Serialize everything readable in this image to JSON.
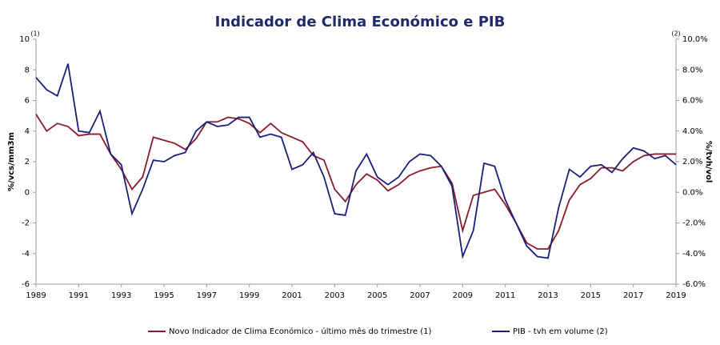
{
  "chart_data": {
    "type": "line",
    "title": "Indicador de Clima Económico e PIB",
    "y_label": "%/vcs/mm3m",
    "y2_label": "%/tvh/vol",
    "y_note": "(1)",
    "y2_note": "(2)",
    "x": [
      1989,
      1989.5,
      1990,
      1990.5,
      1991,
      1991.5,
      1992,
      1992.5,
      1993,
      1993.5,
      1994,
      1994.5,
      1995,
      1995.5,
      1996,
      1996.5,
      1997,
      1997.5,
      1998,
      1998.5,
      1999,
      1999.5,
      2000,
      2000.5,
      2001,
      2001.5,
      2002,
      2002.5,
      2003,
      2003.5,
      2004,
      2004.5,
      2005,
      2005.5,
      2006,
      2006.5,
      2007,
      2007.5,
      2008,
      2008.5,
      2009,
      2009.5,
      2010,
      2010.5,
      2011,
      2011.5,
      2012,
      2012.5,
      2013,
      2013.5,
      2014,
      2014.5,
      2015,
      2015.5,
      2016,
      2016.5,
      2017,
      2017.5,
      2018,
      2018.5,
      2019
    ],
    "series": [
      {
        "name": "Novo Indicador de Clima Económico - último mês do trimestre (1)",
        "color": "#8b1a2b",
        "values": [
          5.1,
          4.0,
          4.5,
          4.3,
          3.7,
          3.8,
          3.8,
          2.5,
          1.5,
          0.2,
          1.0,
          3.6,
          3.4,
          3.2,
          2.8,
          3.5,
          4.6,
          4.6,
          4.9,
          4.8,
          4.5,
          3.9,
          4.5,
          3.9,
          3.6,
          3.3,
          2.4,
          2.1,
          0.2,
          -0.6,
          0.5,
          1.2,
          0.8,
          0.1,
          0.5,
          1.1,
          1.4,
          1.6,
          1.7,
          0.6,
          -2.5,
          -0.2,
          0.0,
          0.2,
          -0.8,
          -2.0,
          -3.3,
          -3.7,
          -3.7,
          -2.5,
          -0.5,
          0.5,
          0.9,
          1.6,
          1.6,
          1.4,
          2.0,
          2.4,
          2.5,
          2.5,
          2.5
        ]
      },
      {
        "name": "PIB - tvh em volume (2)",
        "color": "#1a1f7a",
        "axis": "y2",
        "values": [
          7.5,
          6.7,
          6.3,
          8.4,
          4.0,
          3.9,
          5.3,
          2.5,
          1.8,
          -1.4,
          0.2,
          2.1,
          2.0,
          2.4,
          2.6,
          4.0,
          4.6,
          4.3,
          4.4,
          4.9,
          4.9,
          3.6,
          3.8,
          3.6,
          1.5,
          1.8,
          2.6,
          1.0,
          -1.4,
          -1.5,
          1.4,
          2.5,
          1.0,
          0.5,
          1.0,
          2.0,
          2.5,
          2.4,
          1.7,
          0.4,
          -4.2,
          -2.5,
          1.9,
          1.7,
          -0.5,
          -2.0,
          -3.5,
          -4.2,
          -4.3,
          -1.0,
          1.5,
          1.0,
          1.7,
          1.8,
          1.3,
          2.2,
          2.9,
          2.7,
          2.2,
          2.4,
          1.8
        ]
      }
    ],
    "xlim": [
      1989,
      2019
    ],
    "xticks": [
      1989,
      1991,
      1993,
      1995,
      1997,
      1999,
      2001,
      2003,
      2005,
      2007,
      2009,
      2011,
      2013,
      2015,
      2017,
      2019
    ],
    "ylim": [
      -6,
      10
    ],
    "yticks": [
      -6,
      -4,
      -2,
      0,
      2,
      4,
      6,
      8,
      10
    ],
    "y2lim": [
      -6,
      10
    ],
    "y2ticks": [
      {
        "value": -6,
        "label": "-6.0%"
      },
      {
        "value": -4,
        "label": "-4.0%"
      },
      {
        "value": -2,
        "label": "-2.0%"
      },
      {
        "value": 0,
        "label": "0.0%"
      },
      {
        "value": 2,
        "label": "2.0%"
      },
      {
        "value": 4,
        "label": "4.0%"
      },
      {
        "value": 6,
        "label": "6.0%"
      },
      {
        "value": 8,
        "label": "8.0%"
      },
      {
        "value": 10,
        "label": "10.0%"
      }
    ],
    "legend": "bottom"
  }
}
